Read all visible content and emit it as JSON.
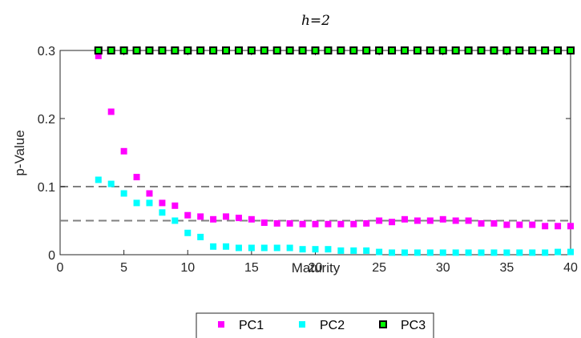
{
  "chart_data": {
    "type": "scatter",
    "title": "h=2",
    "xlabel": "Maturity",
    "ylabel": "p-Value",
    "xlim": [
      0,
      40
    ],
    "ylim": [
      0,
      0.3
    ],
    "xticks": [
      "0",
      "5",
      "10",
      "15",
      "20",
      "25",
      "30",
      "35",
      "40"
    ],
    "yticks": [
      "0",
      "0.1",
      "0.2",
      "0.3"
    ],
    "reference_lines": [
      0.1,
      0.05
    ],
    "legend_placement": "bottom-center-outside",
    "grid": false,
    "x": [
      3,
      4,
      5,
      6,
      7,
      8,
      9,
      10,
      11,
      12,
      13,
      14,
      15,
      16,
      17,
      18,
      19,
      20,
      21,
      22,
      23,
      24,
      25,
      26,
      27,
      28,
      29,
      30,
      31,
      32,
      33,
      34,
      35,
      36,
      37,
      38,
      39,
      40
    ],
    "series": [
      {
        "name": "PC1",
        "color": "#ff00ff",
        "values": [
          0.292,
          0.21,
          0.152,
          0.114,
          0.09,
          0.076,
          0.072,
          0.058,
          0.056,
          0.052,
          0.056,
          0.054,
          0.052,
          0.047,
          0.046,
          0.046,
          0.045,
          0.045,
          0.045,
          0.045,
          0.045,
          0.046,
          0.05,
          0.048,
          0.052,
          0.05,
          0.05,
          0.052,
          0.05,
          0.05,
          0.046,
          0.046,
          0.044,
          0.044,
          0.044,
          0.042,
          0.042,
          0.042
        ]
      },
      {
        "name": "PC2",
        "color": "#00ffff",
        "values": [
          0.11,
          0.104,
          0.09,
          0.076,
          0.076,
          0.062,
          0.05,
          0.032,
          0.026,
          0.012,
          0.012,
          0.01,
          0.01,
          0.01,
          0.01,
          0.01,
          0.008,
          0.008,
          0.008,
          0.006,
          0.006,
          0.006,
          0.004,
          0.003,
          0.003,
          0.003,
          0.003,
          0.003,
          0.003,
          0.003,
          0.003,
          0.003,
          0.003,
          0.003,
          0.003,
          0.003,
          0.004,
          0.004
        ]
      },
      {
        "name": "PC3",
        "color": "#00ff00",
        "values": [
          0.3,
          0.3,
          0.3,
          0.3,
          0.3,
          0.3,
          0.3,
          0.3,
          0.3,
          0.3,
          0.3,
          0.3,
          0.3,
          0.3,
          0.3,
          0.3,
          0.3,
          0.3,
          0.3,
          0.3,
          0.3,
          0.3,
          0.3,
          0.3,
          0.3,
          0.3,
          0.3,
          0.3,
          0.3,
          0.3,
          0.3,
          0.3,
          0.3,
          0.3,
          0.3,
          0.3,
          0.3,
          0.3
        ]
      }
    ]
  }
}
